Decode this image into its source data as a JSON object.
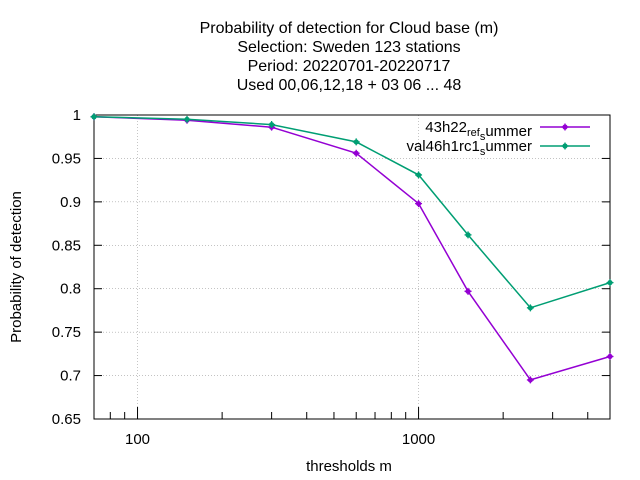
{
  "chart_data": {
    "type": "line",
    "title_lines": [
      "Probability of detection  for Cloud base (m)",
      "Selection: Sweden    123 stations",
      "Period: 20220701-20220717",
      "Used  00,06,12,18  + 03 06 ... 48"
    ],
    "xlabel": "thresholds m",
    "ylabel": "Probability of detection",
    "xscale": "log",
    "xlim": [
      70,
      4800
    ],
    "ylim": [
      0.65,
      1.0
    ],
    "grid": true,
    "legend_position": "top-right",
    "x_tick_labels": [
      "100",
      "1000"
    ],
    "y_tick_labels": [
      "0.65",
      "0.7",
      "0.75",
      "0.8",
      "0.85",
      "0.9",
      "0.95",
      "1"
    ],
    "series": [
      {
        "name": "43h22_ref_summer",
        "legend_parts": [
          "43h22",
          "ref",
          "s",
          "ummer"
        ],
        "color": "#9400d3",
        "x": [
          70,
          150,
          300,
          600,
          1000,
          1500,
          2500,
          4800
        ],
        "y": [
          0.998,
          0.994,
          0.986,
          0.956,
          0.898,
          0.797,
          0.695,
          0.722
        ]
      },
      {
        "name": "val46h1rc1_summer",
        "legend_parts": [
          "val46h1rc1",
          "s",
          "ummer"
        ],
        "color": "#009e73",
        "x": [
          70,
          150,
          300,
          600,
          1000,
          1500,
          2500,
          4800
        ],
        "y": [
          0.998,
          0.995,
          0.989,
          0.969,
          0.931,
          0.862,
          0.778,
          0.807
        ]
      }
    ]
  }
}
